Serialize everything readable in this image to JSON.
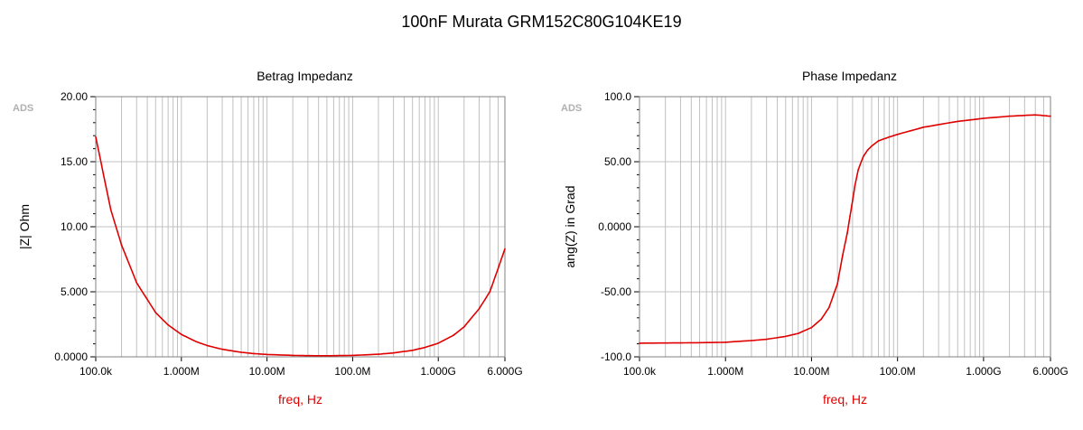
{
  "title": "100nF Murata GRM152C80G104KE19",
  "watermark": "ADS",
  "colors": {
    "curve": "#e00000",
    "grid": "#c0c0c0",
    "frame": "#808080",
    "xlabel": "#e00000"
  },
  "chart_data": [
    {
      "type": "line",
      "title": "Betrag Impedanz",
      "xlabel": "freq, Hz",
      "ylabel": "|Z| Ohm",
      "xscale": "log",
      "xlim": [
        100000,
        6000000000
      ],
      "ylim": [
        0,
        20
      ],
      "grid": true,
      "x_ticks": [
        {
          "value": 100000,
          "label": "100.0k"
        },
        {
          "value": 1000000,
          "label": "1.000M"
        },
        {
          "value": 10000000,
          "label": "10.00M"
        },
        {
          "value": 100000000,
          "label": "100.0M"
        },
        {
          "value": 1000000000,
          "label": "1.000G"
        },
        {
          "value": 6000000000,
          "label": "6.000G"
        }
      ],
      "y_ticks": [
        {
          "value": 0,
          "label": "0.0000"
        },
        {
          "value": 5,
          "label": "5.000"
        },
        {
          "value": 10,
          "label": "10.00"
        },
        {
          "value": 15,
          "label": "15.00"
        },
        {
          "value": 20,
          "label": "20.00"
        }
      ],
      "series": [
        {
          "x": [
            100000,
            150000,
            200000,
            300000,
            500000,
            700000,
            1000000,
            1500000,
            2000000,
            3000000,
            5000000,
            7000000,
            10000000,
            20000000,
            30000000,
            50000000,
            100000000,
            200000000,
            300000000,
            500000000,
            700000000,
            1000000000,
            1500000000,
            2000000000,
            3000000000,
            4000000000,
            5000000000,
            6000000000
          ],
          "y": [
            16.9,
            11.3,
            8.6,
            5.7,
            3.4,
            2.45,
            1.72,
            1.16,
            0.87,
            0.58,
            0.35,
            0.25,
            0.18,
            0.11,
            0.09,
            0.08,
            0.11,
            0.2,
            0.3,
            0.5,
            0.72,
            1.05,
            1.65,
            2.3,
            3.7,
            5.0,
            6.8,
            8.3
          ]
        }
      ]
    },
    {
      "type": "line",
      "title": "Phase Impedanz",
      "xlabel": "freq, Hz",
      "ylabel": "ang(Z) in Grad",
      "xscale": "log",
      "xlim": [
        100000,
        6000000000
      ],
      "ylim": [
        -100,
        100
      ],
      "grid": true,
      "x_ticks": [
        {
          "value": 100000,
          "label": "100.0k"
        },
        {
          "value": 1000000,
          "label": "1.000M"
        },
        {
          "value": 10000000,
          "label": "10.00M"
        },
        {
          "value": 100000000,
          "label": "100.0M"
        },
        {
          "value": 1000000000,
          "label": "1.000G"
        },
        {
          "value": 6000000000,
          "label": "6.000G"
        }
      ],
      "y_ticks": [
        {
          "value": -100,
          "label": "-100.0"
        },
        {
          "value": -50,
          "label": "-50.00"
        },
        {
          "value": 0,
          "label": "0.0000"
        },
        {
          "value": 50,
          "label": "50.00"
        },
        {
          "value": 100,
          "label": "100.0"
        }
      ],
      "series": [
        {
          "x": [
            100000,
            300000,
            700000,
            1000000,
            2000000,
            3000000,
            5000000,
            7000000,
            10000000,
            13000000,
            16000000,
            20000000,
            23000000,
            26000000,
            28000000,
            30000000,
            32000000,
            35000000,
            40000000,
            45000000,
            50000000,
            60000000,
            80000000,
            100000000,
            200000000,
            500000000,
            1000000000,
            2000000000,
            4000000000,
            6000000000
          ],
          "y": [
            -89.5,
            -89.3,
            -89.0,
            -88.8,
            -87.5,
            -86.5,
            -84.3,
            -82.0,
            -77.5,
            -71.0,
            -62.0,
            -44.0,
            -22.0,
            -5.0,
            8.0,
            20.0,
            32.0,
            44.0,
            54.0,
            59.0,
            62.0,
            66.0,
            69.0,
            71.0,
            76.5,
            81.0,
            83.3,
            85.0,
            86.0,
            85.0
          ]
        }
      ]
    }
  ]
}
